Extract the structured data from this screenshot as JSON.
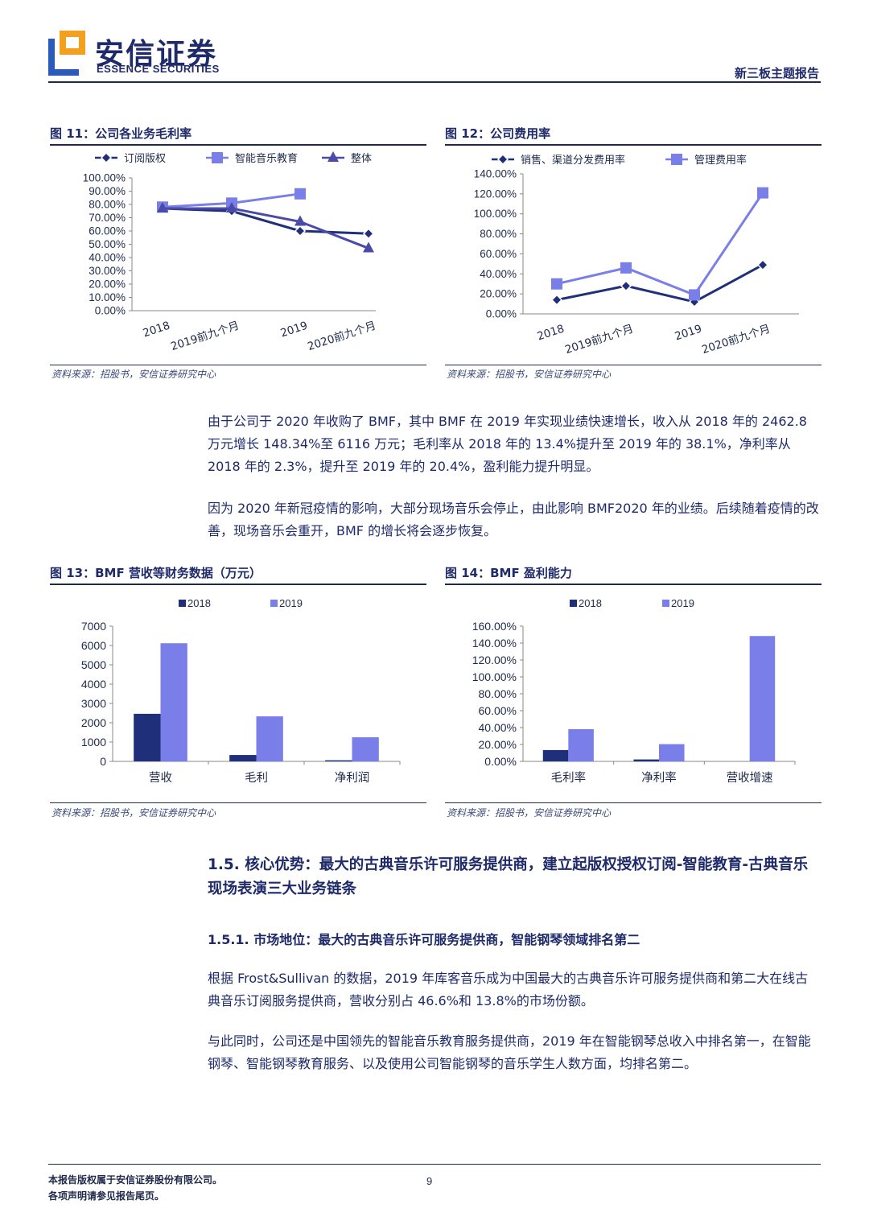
{
  "header": {
    "logo_cn": "安信证券",
    "logo_en": "ESSENCE SECURITIES",
    "report_type": "新三板主题报告"
  },
  "figures": {
    "f11": {
      "title": "图 11：公司各业务毛利率",
      "source": "资料来源：招股书，安信证券研究中心"
    },
    "f12": {
      "title": "图 12：公司费用率",
      "source": "资料来源：招股书，安信证券研究中心"
    },
    "f13": {
      "title": "图 13：BMF 营收等财务数据（万元）",
      "source": "资料来源：招股书，安信证券研究中心"
    },
    "f14": {
      "title": "图 14：BMF 盈利能力",
      "source": "资料来源：招股书，安信证券研究中心"
    }
  },
  "body": {
    "para1": "由于公司于 2020 年收购了 BMF，其中 BMF 在 2019 年实现业绩快速增长，收入从 2018 年的 2462.8 万元增长 148.34%至 6116 万元；毛利率从 2018 年的 13.4%提升至 2019 年的 38.1%，净利率从 2018 年的 2.3%，提升至 2019 年的 20.4%，盈利能力提升明显。",
    "para2": "因为 2020 年新冠疫情的影响，大部分现场音乐会停止，由此影响 BMF2020 年的业绩。后续随着疫情的改善，现场音乐会重开，BMF 的增长将会逐步恢复。",
    "h15": "1.5. 核心优势：最大的古典音乐许可服务提供商，建立起版权授权订阅-智能教育-古典音乐现场表演三大业务链条",
    "h151": "1.5.1. 市场地位：最大的古典音乐许可服务提供商，智能钢琴领域排名第二",
    "para3": "根据 Frost&Sullivan 的数据，2019 年库客音乐成为中国最大的古典音乐许可服务提供商和第二大在线古典音乐订阅服务提供商，营收分别占 46.6%和 13.8%的市场份额。",
    "para4": "与此同时，公司还是中国领先的智能音乐教育服务提供商，2019 年在智能钢琴总收入中排名第一，在智能钢琴、智能钢琴教育服务、以及使用公司智能钢琴的音乐学生人数方面，均排名第二。"
  },
  "footer": {
    "line1": "本报告版权属于安信证券股份有限公司。",
    "line2": "各项声明请参见报告尾页。",
    "page": "9"
  },
  "colors": {
    "dark": "#1f2f7a",
    "light": "#7a7ee8",
    "text": "#1f2a6a"
  },
  "chart_data": [
    {
      "id": "f11",
      "type": "line",
      "categories": [
        "2018",
        "2019前九个月",
        "2019",
        "2020前九个月"
      ],
      "series": [
        {
          "name": "订阅版权",
          "marker": "diamond",
          "values": [
            77,
            75,
            60,
            58
          ]
        },
        {
          "name": "智能音乐教育",
          "marker": "square",
          "values": [
            78,
            81,
            88,
            null
          ]
        },
        {
          "name": "整体",
          "marker": "triangle",
          "values": [
            77,
            77,
            67,
            47
          ]
        }
      ],
      "ylim": [
        0,
        100
      ],
      "yticks": [
        "100.00%",
        "90.00%",
        "80.00%",
        "70.00%",
        "60.00%",
        "50.00%",
        "40.00%",
        "30.00%",
        "20.00%",
        "10.00%",
        "0.00%"
      ],
      "legend": "top"
    },
    {
      "id": "f12",
      "type": "line",
      "categories": [
        "2018",
        "2019前九个月",
        "2019",
        "2020前九个月"
      ],
      "series": [
        {
          "name": "销售、渠道分发费用率",
          "marker": "diamond",
          "values": [
            14,
            28,
            12,
            49
          ]
        },
        {
          "name": "管理费用率",
          "marker": "square",
          "values": [
            30,
            46,
            19,
            121
          ]
        }
      ],
      "ylim": [
        0,
        140
      ],
      "yticks": [
        "140.00%",
        "120.00%",
        "100.00%",
        "80.00%",
        "60.00%",
        "40.00%",
        "20.00%",
        "0.00%"
      ],
      "legend": "top"
    },
    {
      "id": "f13",
      "type": "bar",
      "categories": [
        "营收",
        "毛利",
        "净利润"
      ],
      "series": [
        {
          "name": "2018",
          "values": [
            2462.8,
            330,
            57
          ]
        },
        {
          "name": "2019",
          "values": [
            6116,
            2330,
            1248
          ]
        }
      ],
      "ylim": [
        0,
        7000
      ],
      "yticks": [
        "7000",
        "6000",
        "5000",
        "4000",
        "3000",
        "2000",
        "1000",
        "0"
      ],
      "legend": "top"
    },
    {
      "id": "f14",
      "type": "bar",
      "categories": [
        "毛利率",
        "净利率",
        "营收增速"
      ],
      "series": [
        {
          "name": "2018",
          "values": [
            13.4,
            2.3,
            null
          ]
        },
        {
          "name": "2019",
          "values": [
            38.1,
            20.4,
            148.34
          ]
        }
      ],
      "ylim": [
        0,
        160
      ],
      "yticks": [
        "160.00%",
        "140.00%",
        "120.00%",
        "100.00%",
        "80.00%",
        "60.00%",
        "40.00%",
        "20.00%",
        "0.00%"
      ],
      "legend": "top"
    }
  ]
}
